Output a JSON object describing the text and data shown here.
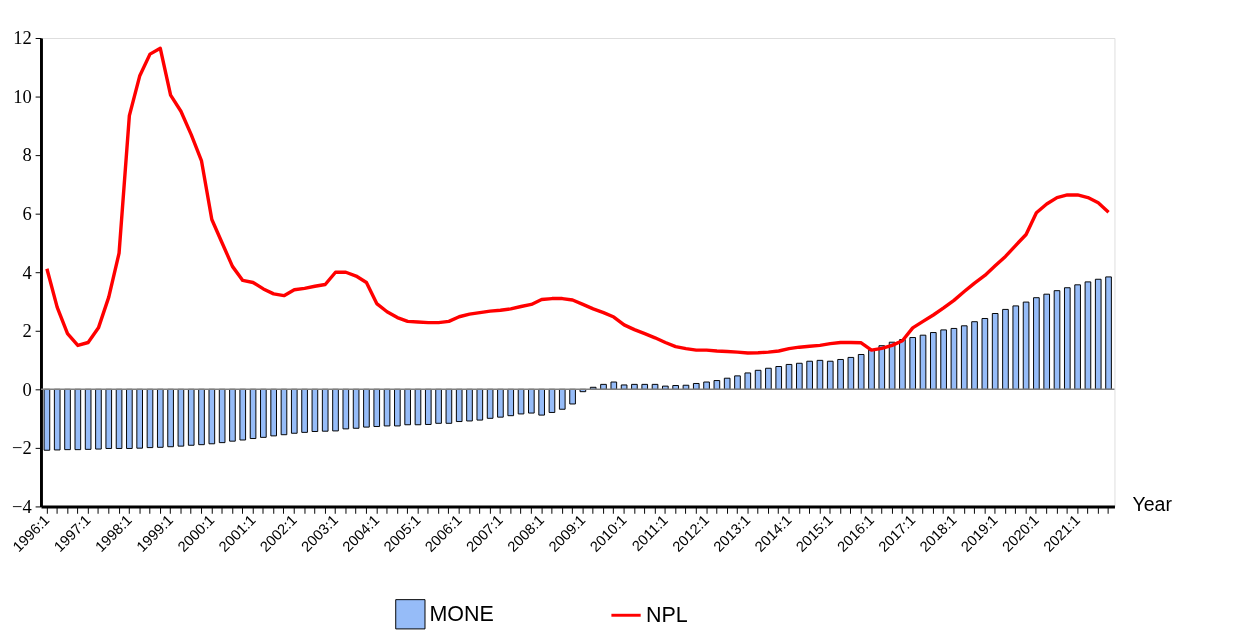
{
  "chart_data": {
    "type": "bar",
    "categories": [
      "1996:1",
      null,
      null,
      null,
      "1997:1",
      null,
      null,
      null,
      "1998:1",
      null,
      null,
      null,
      "1999:1",
      null,
      null,
      null,
      "2000:1",
      null,
      null,
      null,
      "2001:1",
      null,
      null,
      null,
      "2002:1",
      null,
      null,
      null,
      "2003:1",
      null,
      null,
      null,
      "2004:1",
      null,
      null,
      null,
      "2005:1",
      null,
      null,
      null,
      "2006:1",
      null,
      null,
      null,
      "2007:1",
      null,
      null,
      null,
      "2008:1",
      null,
      null,
      null,
      "2009:1",
      null,
      null,
      null,
      "2010:1",
      null,
      null,
      null,
      "2011:1",
      null,
      null,
      null,
      "2012:1",
      null,
      null,
      null,
      "2013:1",
      null,
      null,
      null,
      "2014:1",
      null,
      null,
      null,
      "2015:1",
      null,
      null,
      null,
      "2016:1",
      null,
      null,
      null,
      "2017:1",
      null,
      null,
      null,
      "2018:1",
      null,
      null,
      null,
      "2019:1",
      null,
      null,
      null,
      "2020:1",
      null,
      null,
      null,
      "2021:1",
      null,
      null,
      null
    ],
    "series": [
      {
        "name": "MONE",
        "color": "#96bcf8",
        "values": [
          -2.08,
          -2.07,
          -2.06,
          -2.06,
          -2.05,
          -2.04,
          -2.02,
          -2.02,
          -2.02,
          -2.01,
          -1.99,
          -1.98,
          -1.96,
          -1.94,
          -1.91,
          -1.89,
          -1.86,
          -1.82,
          -1.77,
          -1.73,
          -1.68,
          -1.64,
          -1.59,
          -1.55,
          -1.5,
          -1.47,
          -1.44,
          -1.43,
          -1.42,
          -1.35,
          -1.33,
          -1.29,
          -1.27,
          -1.25,
          -1.25,
          -1.21,
          -1.21,
          -1.2,
          -1.16,
          -1.16,
          -1.1,
          -1.08,
          -1.05,
          -0.99,
          -0.95,
          -0.9,
          -0.84,
          -0.81,
          -0.88,
          -0.79,
          -0.68,
          -0.5,
          -0.08,
          0.07,
          0.17,
          0.25,
          0.15,
          0.17,
          0.17,
          0.17,
          0.11,
          0.13,
          0.14,
          0.2,
          0.25,
          0.3,
          0.38,
          0.46,
          0.56,
          0.65,
          0.72,
          0.78,
          0.85,
          0.89,
          0.96,
          0.99,
          0.96,
          1.02,
          1.09,
          1.19,
          1.34,
          1.49,
          1.61,
          1.7,
          1.77,
          1.85,
          1.94,
          2.03,
          2.08,
          2.17,
          2.31,
          2.42,
          2.59,
          2.73,
          2.85,
          2.98,
          3.13,
          3.25,
          3.37,
          3.47,
          3.57,
          3.67,
          3.76,
          3.84
        ]
      },
      {
        "name": "NPL",
        "type": "line",
        "color": "#ff0000",
        "values": [
          4.12,
          2.8,
          1.9,
          1.5,
          1.6,
          2.1,
          3.15,
          4.65,
          9.35,
          10.7,
          11.45,
          11.65,
          10.05,
          9.5,
          8.7,
          7.8,
          5.8,
          5.0,
          4.2,
          3.72,
          3.65,
          3.43,
          3.26,
          3.2,
          3.4,
          3.45,
          3.52,
          3.58,
          4.0,
          4.0,
          3.87,
          3.65,
          2.93,
          2.65,
          2.45,
          2.32,
          2.3,
          2.28,
          2.28,
          2.32,
          2.48,
          2.57,
          2.62,
          2.67,
          2.7,
          2.75,
          2.83,
          2.9,
          3.07,
          3.1,
          3.1,
          3.05,
          2.9,
          2.75,
          2.62,
          2.47,
          2.2,
          2.04,
          1.9,
          1.76,
          1.6,
          1.46,
          1.39,
          1.34,
          1.34,
          1.31,
          1.29,
          1.27,
          1.24,
          1.25,
          1.27,
          1.31,
          1.39,
          1.44,
          1.47,
          1.5,
          1.56,
          1.6,
          1.6,
          1.59,
          1.34,
          1.4,
          1.5,
          1.66,
          2.1,
          2.32,
          2.54,
          2.78,
          3.04,
          3.34,
          3.63,
          3.89,
          4.22,
          4.54,
          4.92,
          5.29,
          6.03,
          6.33,
          6.55,
          6.64,
          6.64,
          6.55,
          6.37,
          6.05
        ]
      }
    ],
    "ylim": [
      -4,
      12
    ],
    "yticks": [
      -4,
      -2,
      0,
      2,
      4,
      6,
      8,
      10,
      12
    ],
    "xlabel": "Year",
    "ref_lines": [
      {
        "axis": "y",
        "value": 0,
        "color": "#808080"
      }
    ],
    "legend": "bottom"
  }
}
